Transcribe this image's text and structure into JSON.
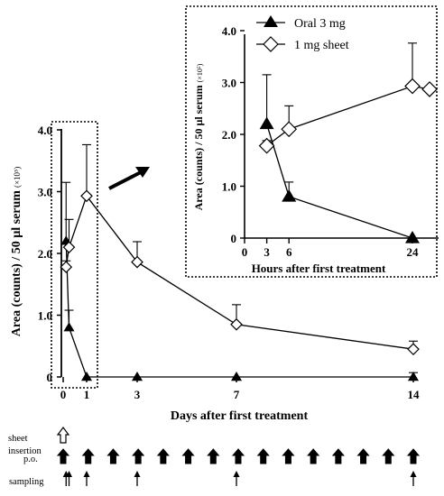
{
  "chart_data": [
    {
      "type": "line",
      "title": "",
      "xlabel": "Days after first treatment",
      "ylabel": "Area (counts) / 50 µl serum",
      "ylabel_unit": "(×10⁵)",
      "xlim": [
        0,
        14
      ],
      "ylim": [
        0,
        4
      ],
      "x_ticks": [
        0,
        1,
        3,
        7,
        14
      ],
      "x_tick_labels": [
        "0",
        "1",
        "3",
        "7",
        "14"
      ],
      "y_ticks": [
        0,
        1,
        2,
        3,
        4
      ],
      "y_tick_labels": [
        "0",
        "1.0",
        "2.0",
        "3.0",
        "4.0"
      ],
      "grid": false,
      "series": [
        {
          "name": "Oral 3 mg",
          "marker": "filled-triangle",
          "x": [
            0.125,
            0.25,
            1,
            3,
            7,
            14
          ],
          "y": [
            2.2,
            0.8,
            0,
            0,
            0,
            0
          ],
          "error_up": [
            0.95,
            0.28,
            0,
            0,
            0,
            0.07
          ]
        },
        {
          "name": "1 mg sheet",
          "marker": "open-diamond",
          "x": [
            0.125,
            0.25,
            1,
            3,
            7,
            14
          ],
          "y": [
            1.78,
            2.1,
            2.93,
            1.86,
            0.85,
            0.45
          ],
          "error_up": [
            0.1,
            0.45,
            0.83,
            0.33,
            0.32,
            0.13
          ]
        }
      ]
    },
    {
      "type": "line",
      "title": "",
      "xlabel": "Hours after first treatment",
      "ylabel": "Area (counts) / 50 µl serum",
      "ylabel_unit": "(×10⁵)",
      "xlim": [
        0,
        24
      ],
      "ylim": [
        0,
        4
      ],
      "x_ticks": [
        0,
        3,
        6,
        24
      ],
      "x_tick_labels": [
        "0",
        "3",
        "6",
        "24"
      ],
      "y_ticks": [
        0,
        1,
        2,
        3,
        4
      ],
      "y_tick_labels": [
        "0",
        "1.0",
        "2.0",
        "3.0",
        "4.0"
      ],
      "legend_position": "top-left",
      "grid": false,
      "series": [
        {
          "name": "Oral 3 mg",
          "marker": "filled-triangle",
          "x": [
            3,
            6,
            24
          ],
          "y": [
            2.2,
            0.8,
            0
          ],
          "error_up": [
            0.95,
            0.28,
            0
          ]
        },
        {
          "name": "1 mg sheet",
          "marker": "open-diamond",
          "x": [
            3,
            6,
            24,
            26.5
          ],
          "y": [
            1.78,
            2.1,
            2.93,
            2.87
          ],
          "error_up": [
            0.1,
            0.45,
            0.83,
            0
          ]
        }
      ]
    }
  ],
  "schedule": {
    "sheet_label": "sheet\ninsertion",
    "po_label": "p.o.",
    "sampling_label": "sampling",
    "sheet_days": [
      0
    ],
    "po_days": [
      0,
      1,
      2,
      3,
      4,
      5,
      6,
      7,
      8,
      9,
      10,
      11,
      12,
      13,
      14
    ],
    "sampling_days": [
      0.125,
      0.25,
      1,
      3,
      7,
      14
    ]
  }
}
